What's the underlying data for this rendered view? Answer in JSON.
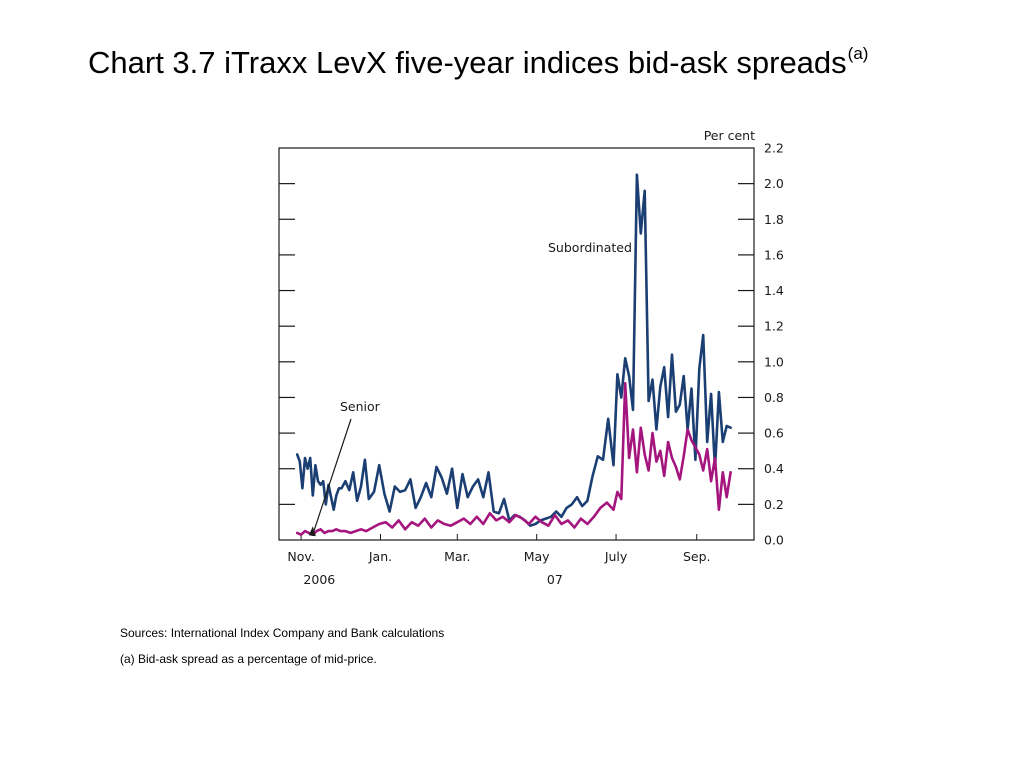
{
  "title": {
    "text": "Chart 3.7  iTraxx LevX five-year indices bid-ask spreads",
    "superscript": "(a)"
  },
  "notes": {
    "sources": "Sources: International Index Company and Bank calculations",
    "footnote": "(a) Bid-ask spread as a percentage of mid-price."
  },
  "chart_data": {
    "type": "line",
    "title": "",
    "xlabel": "",
    "ylabel": "Per cent",
    "ylim": [
      0,
      2.2
    ],
    "y_ticks": [
      "0.0",
      "0.2",
      "0.4",
      "0.6",
      "0.8",
      "1.0",
      "1.2",
      "1.4",
      "1.6",
      "1.8",
      "2.0",
      "2.2"
    ],
    "x_ticks": [
      {
        "label": "Nov.",
        "date": "2006-11-01"
      },
      {
        "label": "Jan.",
        "date": "2007-01-01"
      },
      {
        "label": "Mar.",
        "date": "2007-03-01"
      },
      {
        "label": "May",
        "date": "2007-05-01"
      },
      {
        "label": "July",
        "date": "2007-07-01"
      },
      {
        "label": "Sep.",
        "date": "2007-09-01"
      }
    ],
    "year_labels": [
      {
        "label": "2006",
        "date": "2006-11-15"
      },
      {
        "label": "07",
        "date": "2007-05-15"
      }
    ],
    "x_range": [
      "2006-10-15",
      "2007-10-15"
    ],
    "grid": false,
    "annotations": [
      {
        "text": "Subordinated",
        "series": "Subordinated"
      },
      {
        "text": "Senior",
        "series": "Senior",
        "arrow": true
      }
    ],
    "series": [
      {
        "name": "Subordinated",
        "color": "#1b3f73",
        "x": [
          "2006-10-29",
          "2006-10-31",
          "2006-11-02",
          "2006-11-04",
          "2006-11-06",
          "2006-11-08",
          "2006-11-10",
          "2006-11-12",
          "2006-11-14",
          "2006-11-16",
          "2006-11-18",
          "2006-11-20",
          "2006-11-22",
          "2006-11-24",
          "2006-11-26",
          "2006-11-28",
          "2006-11-30",
          "2006-12-02",
          "2006-12-05",
          "2006-12-08",
          "2006-12-11",
          "2006-12-14",
          "2006-12-17",
          "2006-12-20",
          "2006-12-23",
          "2006-12-27",
          "2006-12-31",
          "2007-01-04",
          "2007-01-08",
          "2007-01-12",
          "2007-01-16",
          "2007-01-20",
          "2007-01-24",
          "2007-01-28",
          "2007-02-01",
          "2007-02-05",
          "2007-02-09",
          "2007-02-13",
          "2007-02-17",
          "2007-02-21",
          "2007-02-25",
          "2007-03-01",
          "2007-03-05",
          "2007-03-09",
          "2007-03-13",
          "2007-03-17",
          "2007-03-21",
          "2007-03-25",
          "2007-03-29",
          "2007-04-02",
          "2007-04-06",
          "2007-04-10",
          "2007-04-14",
          "2007-04-18",
          "2007-04-22",
          "2007-04-26",
          "2007-04-30",
          "2007-05-04",
          "2007-05-08",
          "2007-05-12",
          "2007-05-16",
          "2007-05-20",
          "2007-05-24",
          "2007-05-28",
          "2007-06-01",
          "2007-06-05",
          "2007-06-09",
          "2007-06-13",
          "2007-06-17",
          "2007-06-21",
          "2007-06-25",
          "2007-06-29",
          "2007-07-02",
          "2007-07-05",
          "2007-07-08",
          "2007-07-11",
          "2007-07-14",
          "2007-07-17",
          "2007-07-20",
          "2007-07-23",
          "2007-07-26",
          "2007-07-29",
          "2007-08-01",
          "2007-08-04",
          "2007-08-07",
          "2007-08-10",
          "2007-08-13",
          "2007-08-16",
          "2007-08-19",
          "2007-08-22",
          "2007-08-25",
          "2007-08-28",
          "2007-08-31",
          "2007-09-03",
          "2007-09-06",
          "2007-09-09",
          "2007-09-12",
          "2007-09-15",
          "2007-09-18",
          "2007-09-21",
          "2007-09-24",
          "2007-09-27"
        ],
        "values": [
          0.48,
          0.44,
          0.29,
          0.46,
          0.4,
          0.46,
          0.25,
          0.42,
          0.33,
          0.31,
          0.33,
          0.2,
          0.31,
          0.24,
          0.17,
          0.25,
          0.29,
          0.29,
          0.33,
          0.28,
          0.38,
          0.22,
          0.3,
          0.45,
          0.23,
          0.27,
          0.42,
          0.26,
          0.16,
          0.3,
          0.27,
          0.28,
          0.34,
          0.18,
          0.24,
          0.32,
          0.24,
          0.41,
          0.35,
          0.26,
          0.4,
          0.18,
          0.37,
          0.24,
          0.3,
          0.34,
          0.24,
          0.38,
          0.16,
          0.15,
          0.23,
          0.11,
          0.14,
          0.13,
          0.11,
          0.08,
          0.09,
          0.11,
          0.12,
          0.13,
          0.16,
          0.13,
          0.18,
          0.2,
          0.24,
          0.19,
          0.22,
          0.36,
          0.47,
          0.45,
          0.68,
          0.42,
          0.93,
          0.8,
          1.02,
          0.92,
          0.73,
          2.05,
          1.72,
          1.96,
          0.78,
          0.9,
          0.62,
          0.86,
          0.97,
          0.69,
          1.04,
          0.72,
          0.76,
          0.92,
          0.62,
          0.85,
          0.45,
          0.96,
          1.15,
          0.55,
          0.82,
          0.4,
          0.83,
          0.55,
          0.64,
          0.63
        ]
      },
      {
        "name": "Senior",
        "color": "#a5157e",
        "x": [
          "2006-10-29",
          "2006-11-01",
          "2006-11-04",
          "2006-11-07",
          "2006-11-10",
          "2006-11-13",
          "2006-11-16",
          "2006-11-19",
          "2006-11-22",
          "2006-11-25",
          "2006-11-28",
          "2006-12-01",
          "2006-12-05",
          "2006-12-09",
          "2006-12-13",
          "2006-12-17",
          "2006-12-21",
          "2006-12-26",
          "2006-12-31",
          "2007-01-05",
          "2007-01-10",
          "2007-01-15",
          "2007-01-20",
          "2007-01-25",
          "2007-01-30",
          "2007-02-04",
          "2007-02-09",
          "2007-02-14",
          "2007-02-19",
          "2007-02-24",
          "2007-03-01",
          "2007-03-06",
          "2007-03-11",
          "2007-03-16",
          "2007-03-21",
          "2007-03-26",
          "2007-03-31",
          "2007-04-05",
          "2007-04-10",
          "2007-04-15",
          "2007-04-20",
          "2007-04-25",
          "2007-04-30",
          "2007-05-05",
          "2007-05-10",
          "2007-05-15",
          "2007-05-20",
          "2007-05-25",
          "2007-05-30",
          "2007-06-04",
          "2007-06-09",
          "2007-06-14",
          "2007-06-19",
          "2007-06-24",
          "2007-06-29",
          "2007-07-02",
          "2007-07-05",
          "2007-07-08",
          "2007-07-11",
          "2007-07-14",
          "2007-07-17",
          "2007-07-20",
          "2007-07-23",
          "2007-07-26",
          "2007-07-29",
          "2007-08-01",
          "2007-08-04",
          "2007-08-07",
          "2007-08-10",
          "2007-08-13",
          "2007-08-16",
          "2007-08-19",
          "2007-08-22",
          "2007-08-25",
          "2007-08-28",
          "2007-08-31",
          "2007-09-03",
          "2007-09-06",
          "2007-09-09",
          "2007-09-12",
          "2007-09-15",
          "2007-09-18",
          "2007-09-21",
          "2007-09-24",
          "2007-09-27"
        ],
        "values": [
          0.04,
          0.03,
          0.05,
          0.04,
          0.03,
          0.05,
          0.06,
          0.04,
          0.05,
          0.05,
          0.06,
          0.05,
          0.05,
          0.04,
          0.05,
          0.06,
          0.05,
          0.07,
          0.09,
          0.1,
          0.07,
          0.11,
          0.06,
          0.1,
          0.08,
          0.12,
          0.07,
          0.11,
          0.09,
          0.08,
          0.1,
          0.12,
          0.09,
          0.13,
          0.09,
          0.15,
          0.11,
          0.13,
          0.1,
          0.14,
          0.12,
          0.09,
          0.13,
          0.1,
          0.08,
          0.14,
          0.09,
          0.11,
          0.07,
          0.12,
          0.09,
          0.13,
          0.18,
          0.21,
          0.17,
          0.27,
          0.23,
          0.88,
          0.46,
          0.62,
          0.38,
          0.63,
          0.48,
          0.39,
          0.6,
          0.44,
          0.5,
          0.36,
          0.55,
          0.46,
          0.41,
          0.34,
          0.47,
          0.62,
          0.56,
          0.52,
          0.48,
          0.39,
          0.51,
          0.33,
          0.46,
          0.17,
          0.38,
          0.24,
          0.38
        ]
      }
    ]
  }
}
